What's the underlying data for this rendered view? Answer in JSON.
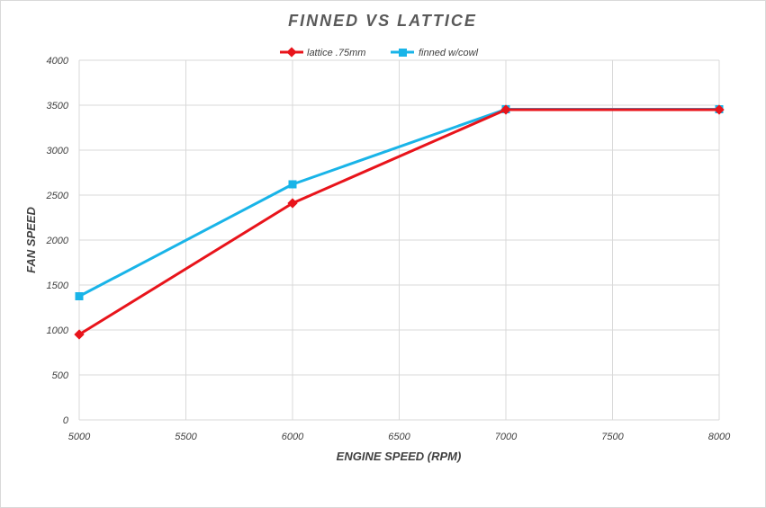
{
  "chart_data": {
    "type": "line",
    "title": "FINNED VS LATTICE",
    "xlabel": "ENGINE SPEED (RPM)",
    "ylabel": "FAN SPEED",
    "x": [
      5000,
      6000,
      7000,
      8000
    ],
    "x_ticks": [
      "5000",
      "5500",
      "6000",
      "6500",
      "7000",
      "7500",
      "8000"
    ],
    "x_tick_values": [
      5000,
      5500,
      6000,
      6500,
      7000,
      7500,
      8000
    ],
    "y_ticks": [
      "0",
      "500",
      "1000",
      "1500",
      "2000",
      "2500",
      "3000",
      "3500",
      "4000"
    ],
    "y_tick_values": [
      0,
      500,
      1000,
      1500,
      2000,
      2500,
      3000,
      3500,
      4000
    ],
    "xlim": [
      5000,
      8000
    ],
    "ylim": [
      0,
      4000
    ],
    "grid": true,
    "legend_position": "top",
    "series": [
      {
        "name": "lattice .75mm",
        "color": "#e8141b",
        "marker": "diamond",
        "values": [
          950,
          2410,
          3450,
          3450
        ]
      },
      {
        "name": "finned w/cowl",
        "color": "#19b4e8",
        "marker": "square",
        "values": [
          1375,
          2620,
          3455,
          3455
        ]
      }
    ]
  }
}
